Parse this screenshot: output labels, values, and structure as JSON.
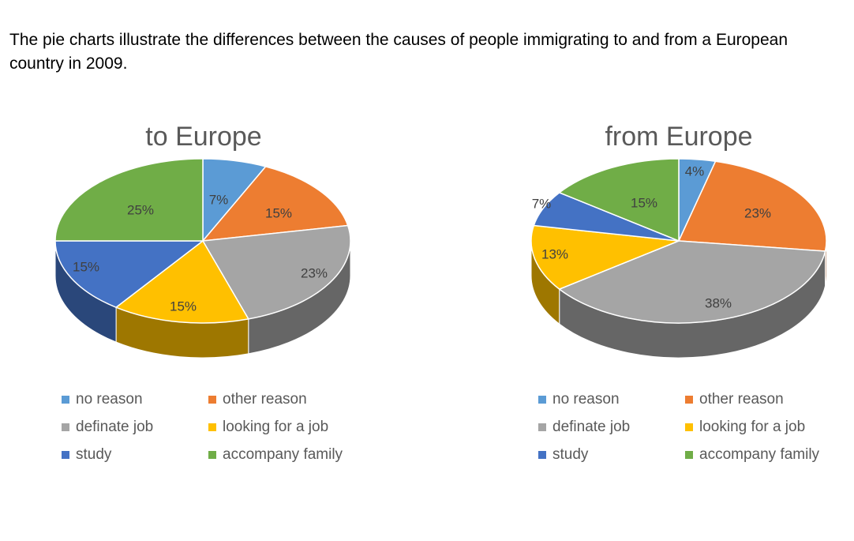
{
  "description": "The pie charts illustrate the differences between the causes of people immigrating to and from a European country in 2009.",
  "colors": {
    "no reason": "#5B9BD5",
    "other reason": "#ED7D31",
    "definate job": "#A5A5A5",
    "looking for a job": "#FFC000",
    "study": "#4472C4",
    "accompany family": "#70AD47"
  },
  "chart_data": [
    {
      "type": "pie",
      "title": "to Europe",
      "categories": [
        "no reason",
        "other reason",
        "definate job",
        "looking for a job",
        "study",
        "accompany family"
      ],
      "values": [
        7,
        15,
        23,
        15,
        15,
        25
      ],
      "labels": [
        "7%",
        "15%",
        "23%",
        "15%",
        "15%",
        "25%"
      ],
      "legend": "bottom"
    },
    {
      "type": "pie",
      "title": "from Europe",
      "categories": [
        "no reason",
        "other reason",
        "definate job",
        "looking for a job",
        "study",
        "accompany family"
      ],
      "values": [
        4,
        23,
        38,
        13,
        7,
        15
      ],
      "labels": [
        "4%",
        "23%",
        "38%",
        "13%",
        "7%",
        "15%"
      ],
      "legend": "bottom"
    }
  ]
}
